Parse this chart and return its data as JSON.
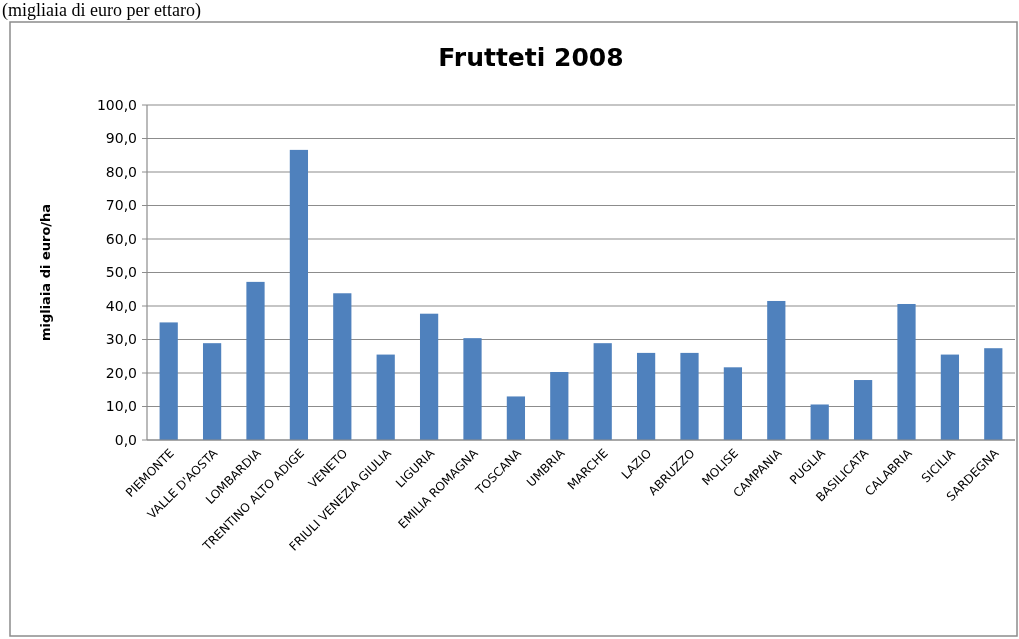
{
  "chart_data": {
    "type": "bar",
    "title": "Frutteti 2008",
    "ylabel": "migliaia di euro/ha",
    "annotations": [
      "(migliaia di euro per ettaro)"
    ],
    "categories": [
      "PIEMONTE",
      "VALLE D'AOSTA",
      "LOMBARDIA",
      "TRENTINO  ALTO ADIGE",
      "VENETO",
      "FRIULI VENEZIA  GIULIA",
      "LIGURIA",
      "EMILIA ROMAGNA",
      "TOSCANA",
      "UMBRIA",
      "MARCHE",
      "LAZIO",
      "ABRUZZO",
      "MOLISE",
      "CAMPANIA",
      "PUGLIA",
      "BASILICATA",
      "CALABRIA",
      "SICILIA",
      "SARDEGNA"
    ],
    "values": [
      35.1,
      28.9,
      47.2,
      86.6,
      43.8,
      25.5,
      37.7,
      30.4,
      13.0,
      20.3,
      28.9,
      26.0,
      26.0,
      21.7,
      41.5,
      10.6,
      17.9,
      40.6,
      25.5,
      27.4
    ],
    "color": "#4f81bd",
    "ylim": [
      0,
      100
    ],
    "yticks": [
      {
        "value": 0,
        "label": "0,0"
      },
      {
        "value": 10,
        "label": "10,0"
      },
      {
        "value": 20,
        "label": "20,0"
      },
      {
        "value": 30,
        "label": "30,0"
      },
      {
        "value": 40,
        "label": "40,0"
      },
      {
        "value": 50,
        "label": "50,0"
      },
      {
        "value": 60,
        "label": "60,0"
      },
      {
        "value": 70,
        "label": "70,0"
      },
      {
        "value": 80,
        "label": "80,0"
      },
      {
        "value": 90,
        "label": "90,0"
      },
      {
        "value": 100,
        "label": "100,0"
      }
    ],
    "grid": "y"
  }
}
